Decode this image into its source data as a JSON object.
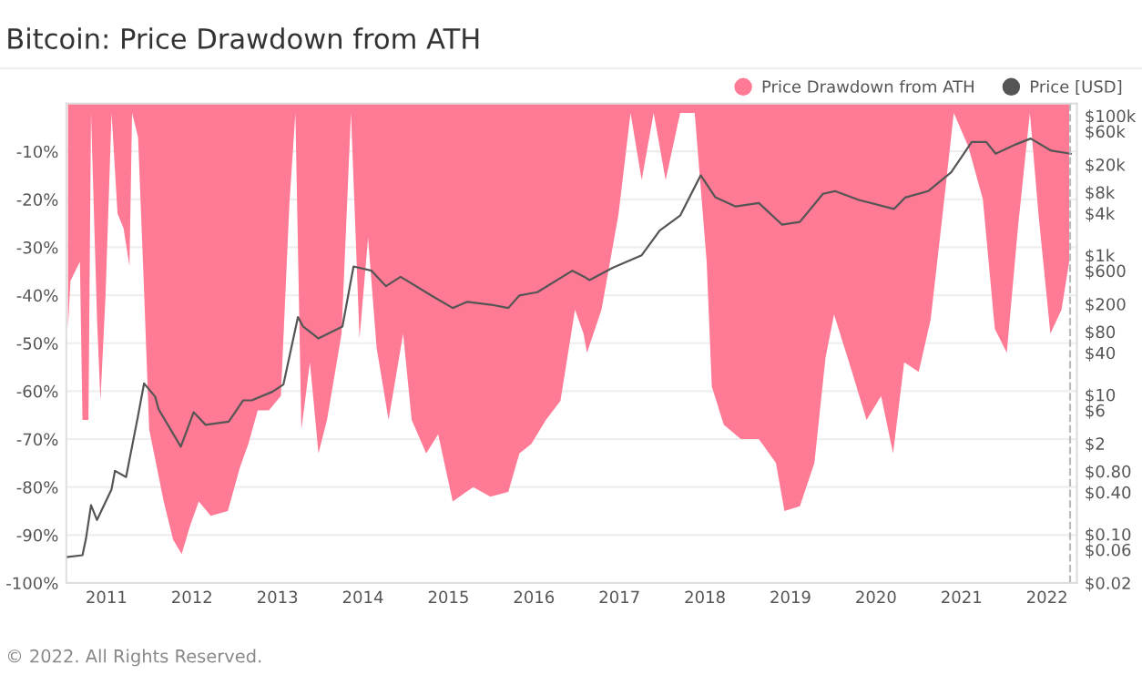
{
  "chart_data": {
    "type": "area",
    "title": "Bitcoin: Price Drawdown from ATH",
    "annotations": [
      "© 2022. All Rights Reserved."
    ],
    "series": [
      {
        "name": "Price Drawdown from ATH",
        "color": "#ff7a95",
        "x": [
          2010.55,
          2010.58,
          2010.69,
          2010.72,
          2010.79,
          2010.82,
          2010.89,
          2010.93,
          2010.99,
          2011.06,
          2011.13,
          2011.2,
          2011.27,
          2011.3,
          2011.37,
          2011.44,
          2011.5,
          2011.67,
          2011.78,
          2011.88,
          2011.98,
          2012.08,
          2012.22,
          2012.42,
          2012.56,
          2012.66,
          2012.77,
          2012.9,
          2013.04,
          2013.14,
          2013.21,
          2013.28,
          2013.38,
          2013.48,
          2013.58,
          2013.75,
          2013.86,
          2013.96,
          2014.06,
          2014.16,
          2014.3,
          2014.47,
          2014.57,
          2014.74,
          2014.88,
          2015.05,
          2015.29,
          2015.49,
          2015.7,
          2015.83,
          2015.97,
          2016.14,
          2016.31,
          2016.48,
          2016.58,
          2016.62,
          2016.79,
          2016.99,
          2017.13,
          2017.26,
          2017.4,
          2017.54,
          2017.71,
          2017.88,
          2018.02,
          2018.08,
          2018.22,
          2018.42,
          2018.63,
          2018.83,
          2018.93,
          2019.11,
          2019.28,
          2019.41,
          2019.51,
          2019.72,
          2019.89,
          2020.06,
          2020.2,
          2020.33,
          2020.5,
          2020.64,
          2020.78,
          2020.91,
          2021.08,
          2021.25,
          2021.39,
          2021.53,
          2021.66,
          2021.8,
          2021.9,
          2022.04,
          2022.17,
          2022.26
        ],
        "values": [
          -47,
          -37,
          -33,
          -66,
          -66,
          -2,
          -45,
          -62,
          -40,
          -2,
          -23,
          -26,
          -34,
          -2,
          -7,
          -39,
          -68,
          -83,
          -91,
          -94,
          -88,
          -83,
          -86,
          -85,
          -76,
          -71,
          -64,
          -64,
          -61,
          -21,
          -2,
          -68,
          -54,
          -73,
          -66,
          -48,
          -2,
          -49,
          -28,
          -51,
          -66,
          -48,
          -66,
          -73,
          -69,
          -83,
          -80,
          -82,
          -81,
          -73,
          -71,
          -66,
          -62,
          -43,
          -48,
          -52,
          -43,
          -23,
          -2,
          -16,
          -2,
          -16,
          -2,
          -2,
          -33,
          -59,
          -67,
          -70,
          -70,
          -75,
          -85,
          -84,
          -75,
          -53,
          -44,
          -56,
          -66,
          -61,
          -73,
          -54,
          -56,
          -45,
          -23,
          -2,
          -9,
          -20,
          -47,
          -52,
          -26,
          -2,
          -23,
          -48,
          -43,
          -33
        ]
      },
      {
        "name": "Price [USD]",
        "color": "#555555",
        "type": "line",
        "axis": "y2",
        "x": [
          2010.53,
          2010.72,
          2010.76,
          2010.82,
          2010.89,
          2011.06,
          2011.1,
          2011.23,
          2011.37,
          2011.44,
          2011.57,
          2011.61,
          2011.87,
          2012.02,
          2012.16,
          2012.43,
          2012.6,
          2012.7,
          2012.94,
          2013.07,
          2013.24,
          2013.3,
          2013.48,
          2013.76,
          2013.89,
          2014.1,
          2014.27,
          2014.44,
          2014.81,
          2015.05,
          2015.22,
          2015.5,
          2015.7,
          2015.83,
          2016.04,
          2016.45,
          2016.59,
          2016.65,
          2016.92,
          2017.26,
          2017.47,
          2017.71,
          2017.95,
          2018.12,
          2018.36,
          2018.63,
          2018.9,
          2019.11,
          2019.38,
          2019.52,
          2019.8,
          2020.21,
          2020.34,
          2020.61,
          2020.88,
          2021.12,
          2021.29,
          2021.4,
          2021.64,
          2021.81,
          2022.05,
          2022.28
        ],
        "values": [
          0.047,
          0.05,
          0.085,
          0.26,
          0.16,
          0.44,
          0.81,
          0.66,
          5,
          14.5,
          9.4,
          6.2,
          1.8,
          5.6,
          3.7,
          4.1,
          8.3,
          8.3,
          11,
          14,
          130,
          95,
          64,
          95,
          690,
          600,
          360,
          490,
          260,
          175,
          215,
          195,
          175,
          265,
          295,
          600,
          490,
          440,
          660,
          1000,
          2250,
          3700,
          14000,
          6800,
          5000,
          5600,
          2750,
          3000,
          7600,
          8300,
          6200,
          4600,
          6700,
          8300,
          15500,
          42000,
          42000,
          28500,
          39000,
          47000,
          31500,
          28500
        ]
      }
    ],
    "xlim": [
      2010.53,
      2022.35
    ],
    "xticks": [
      2011,
      2012,
      2013,
      2014,
      2015,
      2016,
      2017,
      2018,
      2019,
      2020,
      2021,
      2022
    ],
    "ylim": [
      -100,
      0
    ],
    "yticks": [
      {
        "value": -10,
        "label": "-10%"
      },
      {
        "value": -20,
        "label": "-20%"
      },
      {
        "value": -30,
        "label": "-30%"
      },
      {
        "value": -40,
        "label": "-40%"
      },
      {
        "value": -50,
        "label": "-50%"
      },
      {
        "value": -60,
        "label": "-60%"
      },
      {
        "value": -70,
        "label": "-70%"
      },
      {
        "value": -80,
        "label": "-80%"
      },
      {
        "value": -90,
        "label": "-90%"
      },
      {
        "value": -100,
        "label": "-100%"
      }
    ],
    "log": "y2",
    "y2lim": [
      0.02,
      150000
    ],
    "y2ticks": [
      {
        "value": 0.02,
        "label": "$0.02"
      },
      {
        "value": 0.06,
        "label": "$0.06"
      },
      {
        "value": 0.1,
        "label": "$0.10"
      },
      {
        "value": 0.4,
        "label": "$0.40"
      },
      {
        "value": 0.8,
        "label": "$0.80"
      },
      {
        "value": 2,
        "label": "$2"
      },
      {
        "value": 6,
        "label": "$6"
      },
      {
        "value": 10,
        "label": "$10"
      },
      {
        "value": 40,
        "label": "$40"
      },
      {
        "value": 80,
        "label": "$80"
      },
      {
        "value": 200,
        "label": "$200"
      },
      {
        "value": 600,
        "label": "$600"
      },
      {
        "value": 1000,
        "label": "$1k"
      },
      {
        "value": 4000,
        "label": "$4k"
      },
      {
        "value": 8000,
        "label": "$8k"
      },
      {
        "value": 20000,
        "label": "$20k"
      },
      {
        "value": 60000,
        "label": "$60k"
      },
      {
        "value": 100000,
        "label": "$100k"
      }
    ],
    "ref_lines": [
      {
        "axis": "x",
        "value": 2022.27,
        "color": "#bbbbbb",
        "line_style": "dashed"
      }
    ],
    "grid": "y",
    "legend": "top right"
  }
}
